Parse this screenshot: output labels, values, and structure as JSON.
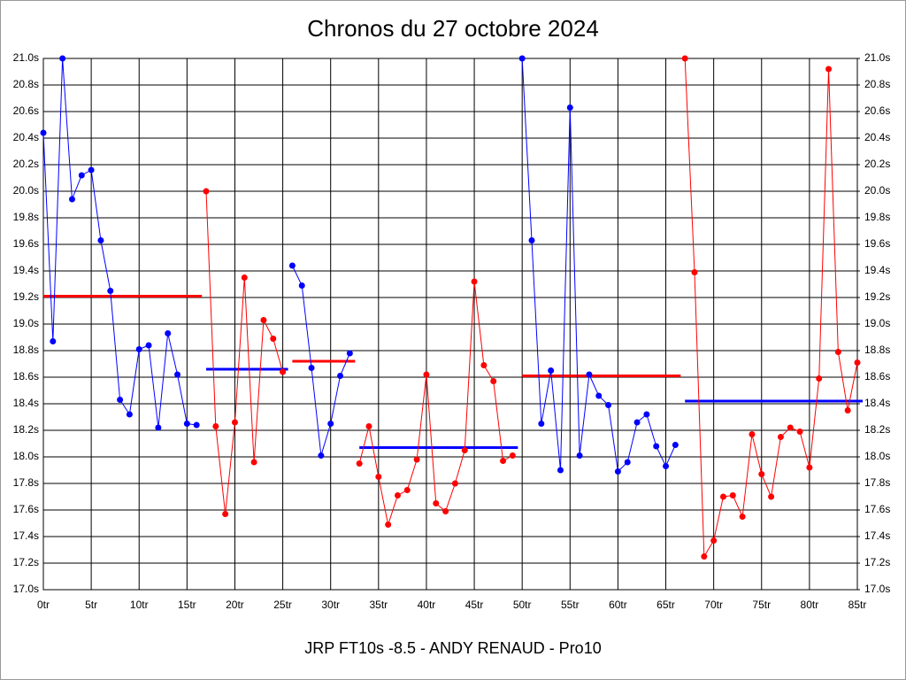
{
  "chart_data": {
    "type": "line",
    "title": "Chronos du 27 octobre 2024",
    "xlabel": "JRP FT10s -8.5 - ANDY RENAUD - Pro10",
    "xlim": [
      0,
      85
    ],
    "xticks": [
      {
        "value": 0,
        "label": "0tr"
      },
      {
        "value": 5,
        "label": "5tr"
      },
      {
        "value": 10,
        "label": "10tr"
      },
      {
        "value": 15,
        "label": "15tr"
      },
      {
        "value": 20,
        "label": "20tr"
      },
      {
        "value": 25,
        "label": "25tr"
      },
      {
        "value": 30,
        "label": "30tr"
      },
      {
        "value": 35,
        "label": "35tr"
      },
      {
        "value": 40,
        "label": "40tr"
      },
      {
        "value": 45,
        "label": "45tr"
      },
      {
        "value": 50,
        "label": "50tr"
      },
      {
        "value": 55,
        "label": "55tr"
      },
      {
        "value": 60,
        "label": "60tr"
      },
      {
        "value": 65,
        "label": "65tr"
      },
      {
        "value": 70,
        "label": "70tr"
      },
      {
        "value": 75,
        "label": "75tr"
      },
      {
        "value": 80,
        "label": "80tr"
      },
      {
        "value": 85,
        "label": "85tr"
      }
    ],
    "ylim": [
      17.0,
      21.0
    ],
    "yticks": [
      {
        "value": 17.0,
        "label": "17.0s"
      },
      {
        "value": 17.2,
        "label": "17.2s"
      },
      {
        "value": 17.4,
        "label": "17.4s"
      },
      {
        "value": 17.6,
        "label": "17.6s"
      },
      {
        "value": 17.8,
        "label": "17.8s"
      },
      {
        "value": 18.0,
        "label": "18.0s"
      },
      {
        "value": 18.2,
        "label": "18.2s"
      },
      {
        "value": 18.4,
        "label": "18.4s"
      },
      {
        "value": 18.6,
        "label": "18.6s"
      },
      {
        "value": 18.8,
        "label": "18.8s"
      },
      {
        "value": 19.0,
        "label": "19.0s"
      },
      {
        "value": 19.2,
        "label": "19.2s"
      },
      {
        "value": 19.4,
        "label": "19.4s"
      },
      {
        "value": 19.6,
        "label": "19.6s"
      },
      {
        "value": 19.8,
        "label": "19.8s"
      },
      {
        "value": 20.0,
        "label": "20.0s"
      },
      {
        "value": 20.2,
        "label": "20.2s"
      },
      {
        "value": 20.4,
        "label": "20.4s"
      },
      {
        "value": 20.6,
        "label": "20.6s"
      },
      {
        "value": 20.8,
        "label": "20.8s"
      },
      {
        "value": 21.0,
        "label": "21.0s"
      }
    ],
    "y2lim": [
      17.0,
      21.0
    ],
    "y2ticks": [
      {
        "value": 17.0,
        "label": "17.0s"
      },
      {
        "value": 17.2,
        "label": "17.2s"
      },
      {
        "value": 17.4,
        "label": "17.4s"
      },
      {
        "value": 17.6,
        "label": "17.6s"
      },
      {
        "value": 17.8,
        "label": "17.8s"
      },
      {
        "value": 18.0,
        "label": "18.0s"
      },
      {
        "value": 18.2,
        "label": "18.2s"
      },
      {
        "value": 18.4,
        "label": "18.4s"
      },
      {
        "value": 18.6,
        "label": "18.6s"
      },
      {
        "value": 18.8,
        "label": "18.8s"
      },
      {
        "value": 19.0,
        "label": "19.0s"
      },
      {
        "value": 19.2,
        "label": "19.2s"
      },
      {
        "value": 19.4,
        "label": "19.4s"
      },
      {
        "value": 19.6,
        "label": "19.6s"
      },
      {
        "value": 19.8,
        "label": "19.8s"
      },
      {
        "value": 20.0,
        "label": "20.0s"
      },
      {
        "value": 20.2,
        "label": "20.2s"
      },
      {
        "value": 20.4,
        "label": "20.4s"
      },
      {
        "value": 20.6,
        "label": "20.6s"
      },
      {
        "value": 20.8,
        "label": "20.8s"
      },
      {
        "value": 21.0,
        "label": "21.0s"
      }
    ],
    "grid": true,
    "series": [
      {
        "color": "#0000ff",
        "mean": 19.21,
        "mean_color": "#ff0000",
        "x": [
          0,
          1,
          2,
          3,
          4,
          5,
          6,
          7,
          8,
          9,
          10,
          11,
          12,
          13,
          14,
          15,
          16
        ],
        "values": [
          20.44,
          18.87,
          21.0,
          19.94,
          20.12,
          20.16,
          19.63,
          19.25,
          18.43,
          18.32,
          18.81,
          18.84,
          18.22,
          18.93,
          18.62,
          18.25,
          18.24
        ]
      },
      {
        "color": "#ff0000",
        "mean": 18.66,
        "mean_color": "#0000ff",
        "x": [
          17,
          18,
          19,
          20,
          21,
          22,
          23,
          24,
          25
        ],
        "values": [
          20.0,
          18.23,
          17.57,
          18.26,
          19.35,
          17.96,
          19.03,
          18.89,
          18.64
        ]
      },
      {
        "color": "#0000ff",
        "mean": 18.72,
        "mean_color": "#ff0000",
        "x": [
          26,
          27,
          28,
          29,
          30,
          31,
          32
        ],
        "values": [
          19.44,
          19.29,
          18.67,
          18.01,
          18.25,
          18.61,
          18.78
        ]
      },
      {
        "color": "#ff0000",
        "mean": 18.07,
        "mean_color": "#0000ff",
        "x": [
          33,
          34,
          35,
          36,
          37,
          38,
          39,
          40,
          41,
          42,
          43,
          44,
          45,
          46,
          47,
          48,
          49
        ],
        "values": [
          17.95,
          18.23,
          17.85,
          17.49,
          17.71,
          17.75,
          17.98,
          18.62,
          17.65,
          17.59,
          17.8,
          18.05,
          19.32,
          18.69,
          18.57,
          17.97,
          18.01
        ]
      },
      {
        "color": "#0000ff",
        "mean": 18.61,
        "mean_color": "#ff0000",
        "x": [
          50,
          51,
          52,
          53,
          54,
          55,
          56,
          57,
          58,
          59,
          60,
          61,
          62,
          63,
          64,
          65,
          66
        ],
        "values": [
          21.0,
          19.63,
          18.25,
          18.65,
          17.9,
          20.63,
          18.01,
          18.62,
          18.46,
          18.39,
          17.89,
          17.96,
          18.26,
          18.32,
          18.08,
          17.93,
          18.09
        ]
      },
      {
        "color": "#ff0000",
        "mean": 18.42,
        "mean_color": "#0000ff",
        "x": [
          67,
          68,
          69,
          70,
          71,
          72,
          73,
          74,
          75,
          76,
          77,
          78,
          79,
          80,
          81,
          82,
          83,
          84,
          85
        ],
        "values": [
          21.0,
          19.39,
          17.25,
          17.37,
          17.7,
          17.71,
          17.55,
          18.17,
          17.87,
          17.7,
          18.15,
          18.22,
          18.19,
          17.92,
          18.59,
          20.92,
          18.79,
          18.35,
          18.71
        ]
      }
    ]
  }
}
